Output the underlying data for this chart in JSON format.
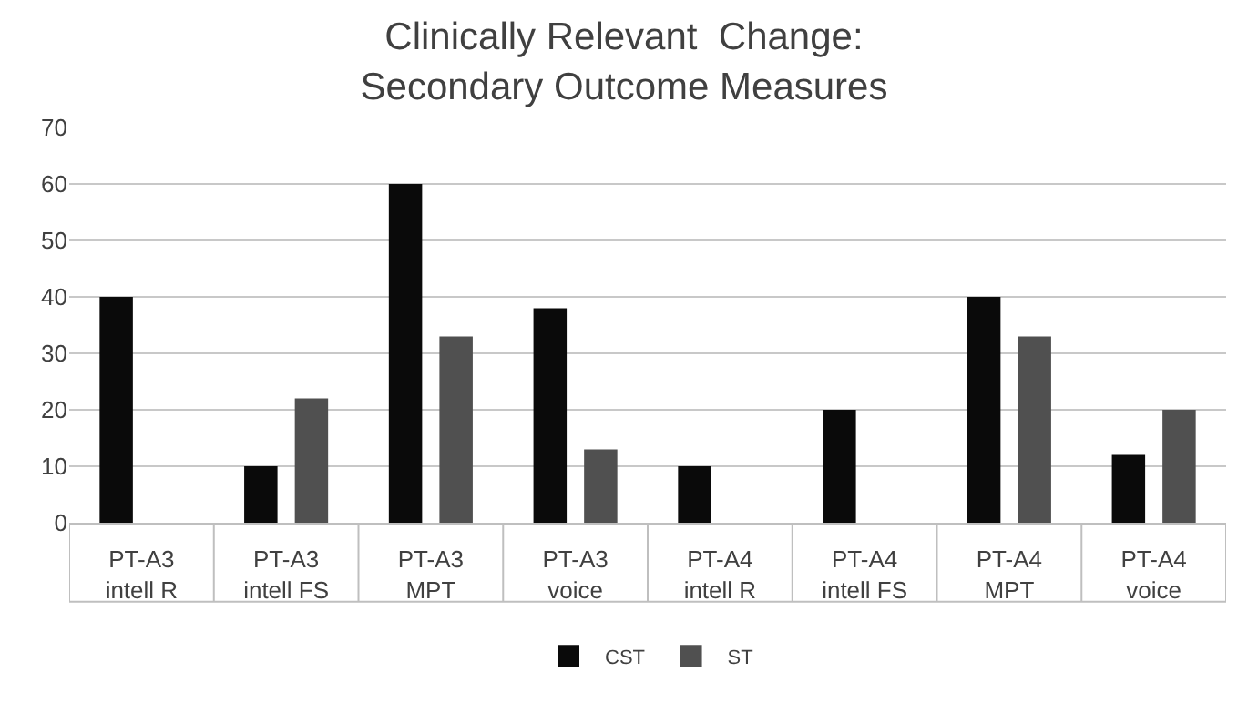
{
  "chart_data": {
    "type": "bar",
    "title": "Clinically Relevant  Change:\nSecondary Outcome Measures",
    "categories": [
      "PT-A3\nintell R",
      "PT-A3\nintell FS",
      "PT-A3\nMPT",
      "PT-A3\nvoice",
      "PT-A4\nintell R",
      "PT-A4\nintell FS",
      "PT-A4\nMPT",
      "PT-A4\nvoice"
    ],
    "series": [
      {
        "name": "CST",
        "color": "#0a0a0a",
        "values": [
          40,
          10,
          60,
          38,
          10,
          20,
          40,
          12
        ]
      },
      {
        "name": "ST",
        "color": "#505050",
        "values": [
          null,
          22,
          33,
          13,
          null,
          null,
          33,
          20
        ]
      }
    ],
    "ylim": [
      0,
      70
    ],
    "yticks": [
      0,
      10,
      20,
      30,
      40,
      50,
      60,
      70
    ],
    "grid": "y",
    "legend": "bottom"
  }
}
